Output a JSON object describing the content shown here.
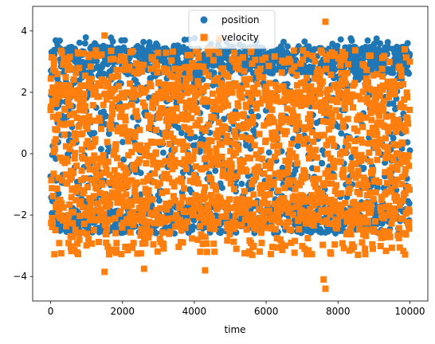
{
  "chart_data": {
    "type": "scatter",
    "title": "",
    "xlabel": "time",
    "ylabel": "",
    "xlim": [
      -500,
      10500
    ],
    "ylim": [
      -4.8,
      4.8
    ],
    "x_ticks": [
      0,
      2000,
      4000,
      6000,
      8000,
      10000
    ],
    "x_tick_labels": [
      "0",
      "2000",
      "4000",
      "6000",
      "8000",
      "10000"
    ],
    "y_ticks": [
      4,
      2,
      0,
      -2,
      -4
    ],
    "y_tick_labels": [
      "4",
      "2",
      "0",
      "−2",
      "−4"
    ],
    "grid": false,
    "legend_position": "top-center",
    "n_points": 10000,
    "series": [
      {
        "name": "position",
        "marker": "circle",
        "color": "#1f77b4",
        "y_range_typical": [
          -2.6,
          3.5
        ],
        "y_range_extreme": [
          -2.7,
          3.8
        ],
        "note_min": -2.6
      },
      {
        "name": "velocity",
        "marker": "square",
        "color": "#ff7f0e",
        "y_range_typical": [
          -3.3,
          3.4
        ],
        "y_range_extreme": [
          -4.4,
          4.3
        ],
        "extremes": [
          {
            "x": 7650,
            "y": 4.3
          },
          {
            "x": 7650,
            "y": -4.4
          },
          {
            "x": 7600,
            "y": -4.1
          },
          {
            "x": 1500,
            "y": 3.85
          },
          {
            "x": 1500,
            "y": -3.85
          },
          {
            "x": 4300,
            "y": -3.8
          },
          {
            "x": 2600,
            "y": -3.75
          },
          {
            "x": 4700,
            "y": 3.75
          }
        ]
      }
    ]
  }
}
